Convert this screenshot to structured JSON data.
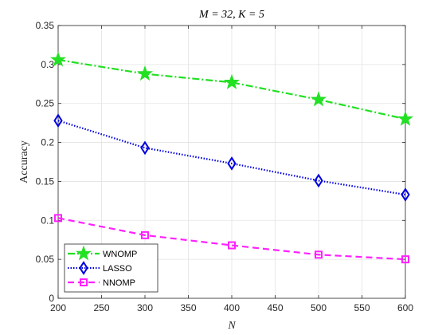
{
  "chart_data": {
    "type": "line",
    "title": "M = 32, K = 5",
    "xlabel": "N",
    "ylabel": "Accuracy",
    "x": [
      200,
      300,
      400,
      500,
      600
    ],
    "xlim": [
      200,
      600
    ],
    "ylim": [
      0,
      0.35
    ],
    "xticks": [
      "200",
      "250",
      "300",
      "350",
      "400",
      "450",
      "500",
      "550",
      "600"
    ],
    "yticks": [
      "0",
      "0.05",
      "0.1",
      "0.15",
      "0.2",
      "0.25",
      "0.3",
      "0.35"
    ],
    "grid": true,
    "legend_position": "bottom-left",
    "series": [
      {
        "name": "WNOMP",
        "values": [
          0.306,
          0.288,
          0.277,
          0.255,
          0.23
        ],
        "color": "#22e022",
        "marker": "star",
        "line_style": "dash-dot"
      },
      {
        "name": "LASSO",
        "values": [
          0.228,
          0.193,
          0.173,
          0.151,
          0.133
        ],
        "color": "#0000e0",
        "marker": "diamond",
        "line_style": "dotted"
      },
      {
        "name": "NNOMP",
        "values": [
          0.103,
          0.081,
          0.068,
          0.056,
          0.05
        ],
        "color": "#ff20ff",
        "marker": "square",
        "line_style": "dashed"
      }
    ]
  }
}
